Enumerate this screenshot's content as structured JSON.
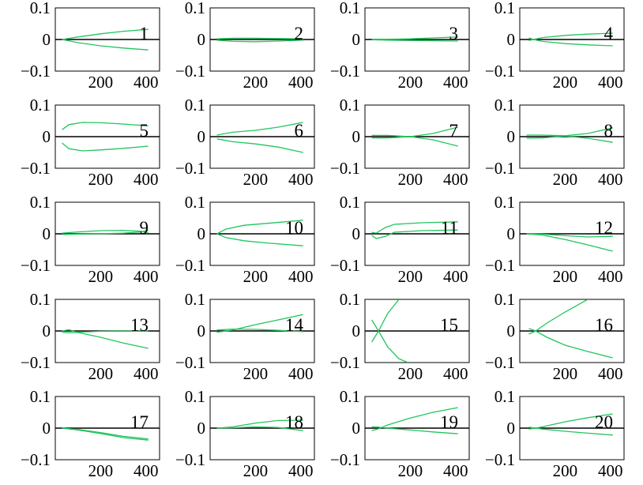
{
  "colors": {
    "series": "#22c55e",
    "axis": "#000000",
    "background": "#ffffff"
  },
  "chart_data": {
    "type": "line",
    "grid": false,
    "layout": "5x4 panel grid",
    "ylim": [
      -0.1,
      0.1
    ],
    "xlim": [
      0,
      460
    ],
    "yticks": [
      0.1,
      0,
      -0.1
    ],
    "ytick_labels": [
      "0.1",
      "0",
      "−0.1"
    ],
    "xticks": [
      200,
      400
    ],
    "xtick_labels": [
      "200",
      "400"
    ],
    "panels": [
      {
        "label": "1",
        "series": [
          {
            "x": [
              30,
              100,
              200,
              300,
              410
            ],
            "y": [
              0,
              0.008,
              0.018,
              0.026,
              0.032
            ]
          },
          {
            "x": [
              30,
              100,
              200,
              300,
              410
            ],
            "y": [
              0,
              -0.01,
              -0.02,
              -0.027,
              -0.033
            ]
          }
        ]
      },
      {
        "label": "2",
        "series": [
          {
            "x": [
              30,
              100,
              200,
              300,
              410
            ],
            "y": [
              0.002,
              0.004,
              0.004,
              0.003,
              0.002
            ]
          },
          {
            "x": [
              30,
              100,
              200,
              300,
              410
            ],
            "y": [
              -0.002,
              -0.006,
              -0.007,
              -0.005,
              -0.002
            ]
          }
        ]
      },
      {
        "label": "3",
        "series": [
          {
            "x": [
              30,
              100,
              200,
              300,
              410
            ],
            "y": [
              0.001,
              0.001,
              0.002,
              0.005,
              0.008
            ]
          },
          {
            "x": [
              30,
              100,
              200,
              300,
              410
            ],
            "y": [
              -0.001,
              -0.002,
              -0.003,
              -0.004,
              -0.005
            ]
          }
        ]
      },
      {
        "label": "4",
        "series": [
          {
            "x": [
              40,
              60,
              100,
              200,
              300,
              410
            ],
            "y": [
              0.005,
              0,
              0.006,
              0.013,
              0.017,
              0.02
            ]
          },
          {
            "x": [
              40,
              60,
              100,
              200,
              300,
              410
            ],
            "y": [
              -0.003,
              0,
              -0.006,
              -0.013,
              -0.017,
              -0.02
            ]
          }
        ]
      },
      {
        "label": "5",
        "series": [
          {
            "x": [
              30,
              60,
              120,
              200,
              300,
              410
            ],
            "y": [
              0.022,
              0.038,
              0.045,
              0.044,
              0.04,
              0.034
            ]
          },
          {
            "x": [
              30,
              60,
              120,
              200,
              300,
              410
            ],
            "y": [
              -0.02,
              -0.038,
              -0.045,
              -0.042,
              -0.037,
              -0.03
            ]
          }
        ]
      },
      {
        "label": "6",
        "series": [
          {
            "x": [
              30,
              100,
              200,
              300,
              410
            ],
            "y": [
              0.005,
              0.014,
              0.02,
              0.03,
              0.045
            ]
          },
          {
            "x": [
              30,
              100,
              200,
              300,
              410
            ],
            "y": [
              -0.007,
              -0.016,
              -0.023,
              -0.033,
              -0.05
            ]
          }
        ]
      },
      {
        "label": "7",
        "series": [
          {
            "x": [
              30,
              100,
              200,
              300,
              410
            ],
            "y": [
              -0.004,
              -0.004,
              0,
              0.01,
              0.03
            ]
          },
          {
            "x": [
              30,
              100,
              200,
              300,
              410
            ],
            "y": [
              0.004,
              0.004,
              0,
              -0.01,
              -0.03
            ]
          }
        ]
      },
      {
        "label": "8",
        "series": [
          {
            "x": [
              30,
              100,
              200,
              300,
              410
            ],
            "y": [
              0.005,
              0.005,
              0.003,
              0.01,
              0.028
            ]
          },
          {
            "x": [
              30,
              100,
              200,
              300,
              410
            ],
            "y": [
              -0.005,
              -0.004,
              0.002,
              -0.005,
              -0.018
            ]
          }
        ]
      },
      {
        "label": "9",
        "series": [
          {
            "x": [
              30,
              100,
              200,
              300,
              380,
              410
            ],
            "y": [
              0.002,
              0.006,
              0.01,
              0.011,
              0.008,
              0.004
            ]
          },
          {
            "x": [
              30,
              100,
              200,
              300,
              380,
              410
            ],
            "y": [
              -0.002,
              -0.001,
              0,
              0.002,
              0.006,
              0.012
            ]
          }
        ]
      },
      {
        "label": "10",
        "series": [
          {
            "x": [
              30,
              70,
              150,
              250,
              410
            ],
            "y": [
              0,
              0.015,
              0.027,
              0.033,
              0.043
            ]
          },
          {
            "x": [
              30,
              70,
              150,
              250,
              410
            ],
            "y": [
              0,
              -0.012,
              -0.022,
              -0.029,
              -0.038
            ]
          }
        ]
      },
      {
        "label": "11",
        "series": [
          {
            "x": [
              30,
              50,
              90,
              130,
              250,
              410
            ],
            "y": [
              -0.005,
              -0.015,
              -0.008,
              0.005,
              0.01,
              0.012
            ]
          },
          {
            "x": [
              30,
              50,
              90,
              130,
              250,
              410
            ],
            "y": [
              0.005,
              0.002,
              0.02,
              0.03,
              0.035,
              0.038
            ]
          }
        ]
      },
      {
        "label": "12",
        "series": [
          {
            "x": [
              30,
              100,
              200,
              300,
              410
            ],
            "y": [
              0,
              -0.001,
              -0.006,
              -0.01,
              -0.008
            ]
          },
          {
            "x": [
              30,
              100,
              200,
              300,
              410
            ],
            "y": [
              0,
              -0.004,
              -0.018,
              -0.035,
              -0.055
            ]
          }
        ]
      },
      {
        "label": "13",
        "series": [
          {
            "x": [
              30,
              60,
              100,
              200,
              300,
              410
            ],
            "y": [
              0,
              0.004,
              -0.005,
              -0.02,
              -0.038,
              -0.055
            ]
          },
          {
            "x": [
              30,
              60,
              100,
              200,
              300,
              410
            ],
            "y": [
              -0.004,
              -0.006,
              -0.004,
              -0.001,
              0,
              0
            ]
          }
        ]
      },
      {
        "label": "14",
        "series": [
          {
            "x": [
              30,
              100,
              200,
              300,
              410
            ],
            "y": [
              -0.004,
              0.003,
              0.02,
              0.035,
              0.052
            ]
          },
          {
            "x": [
              30,
              100,
              200,
              300,
              410
            ],
            "y": [
              0.003,
              0.006,
              0.005,
              0.002,
              -0.002
            ]
          }
        ]
      },
      {
        "label": "15",
        "series": [
          {
            "x": [
              30,
              60,
              100,
              150
            ],
            "y": [
              -0.035,
              0,
              0.055,
              0.1
            ]
          },
          {
            "x": [
              30,
              60,
              100,
              150,
              190
            ],
            "y": [
              0.035,
              0,
              -0.05,
              -0.088,
              -0.1
            ]
          }
        ]
      },
      {
        "label": "16",
        "series": [
          {
            "x": [
              40,
              70,
              120,
              200,
              300
            ],
            "y": [
              -0.01,
              0,
              0.025,
              0.06,
              0.1
            ]
          },
          {
            "x": [
              40,
              70,
              120,
              200,
              300,
              410
            ],
            "y": [
              0.008,
              0,
              -0.02,
              -0.045,
              -0.065,
              -0.085
            ]
          }
        ]
      },
      {
        "label": "17",
        "series": [
          {
            "x": [
              30,
              100,
              200,
              300,
              410
            ],
            "y": [
              0,
              -0.004,
              -0.014,
              -0.026,
              -0.034
            ]
          },
          {
            "x": [
              30,
              100,
              200,
              300,
              410
            ],
            "y": [
              0,
              -0.006,
              -0.017,
              -0.03,
              -0.038
            ]
          }
        ]
      },
      {
        "label": "18",
        "series": [
          {
            "x": [
              30,
              100,
              200,
              300,
              410
            ],
            "y": [
              0,
              0.004,
              0.016,
              0.024,
              0.025
            ]
          },
          {
            "x": [
              30,
              100,
              200,
              300,
              410
            ],
            "y": [
              0,
              0.001,
              0.004,
              0.002,
              -0.008
            ]
          }
        ]
      },
      {
        "label": "19",
        "series": [
          {
            "x": [
              30,
              60,
              100,
              200,
              300,
              410
            ],
            "y": [
              -0.008,
              -0.002,
              0.01,
              0.032,
              0.05,
              0.065
            ]
          },
          {
            "x": [
              30,
              60,
              100,
              200,
              300,
              410
            ],
            "y": [
              0.004,
              0.003,
              0,
              -0.006,
              -0.012,
              -0.018
            ]
          }
        ]
      },
      {
        "label": "20",
        "series": [
          {
            "x": [
              40,
              70,
              100,
              200,
              300,
              410
            ],
            "y": [
              -0.003,
              0,
              0.004,
              0.02,
              0.033,
              0.045
            ]
          },
          {
            "x": [
              40,
              70,
              100,
              200,
              300,
              410
            ],
            "y": [
              0.003,
              0,
              -0.003,
              -0.01,
              -0.016,
              -0.022
            ]
          }
        ]
      }
    ]
  }
}
